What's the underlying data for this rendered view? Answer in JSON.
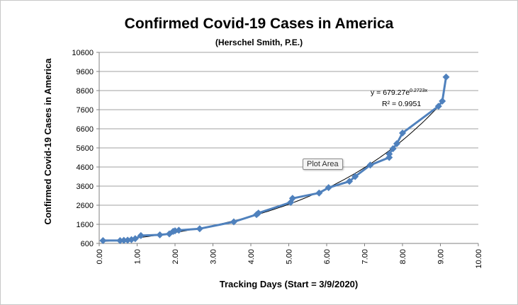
{
  "chart_data": {
    "type": "scatter",
    "title": "Confirmed Covid-19 Cases in America",
    "subtitle": "(Herschel Smith, P.E.)",
    "xlabel": "Tracking Days (Start = 3/9/2020)",
    "ylabel": "Confirmed Covid-19 Cases in America",
    "xlim": [
      0,
      10
    ],
    "ylim": [
      600,
      10600
    ],
    "x_tick_labels": [
      "0.00",
      "1.00",
      "2.00",
      "3.00",
      "4.00",
      "5.00",
      "6.00",
      "7.00",
      "8.00",
      "9.00",
      "10.00"
    ],
    "y_tick_labels": [
      "600",
      "1600",
      "2600",
      "3600",
      "4600",
      "5600",
      "6600",
      "7600",
      "8600",
      "9600",
      "10600"
    ],
    "grid": true,
    "series": [
      {
        "color": "#4f81bd",
        "x": [
          0.1,
          0.55,
          0.65,
          0.75,
          0.85,
          0.95,
          1.1,
          1.6,
          1.85,
          1.95,
          2.0,
          2.1,
          2.65,
          3.55,
          4.15,
          4.2,
          5.05,
          5.1,
          5.8,
          6.05,
          6.6,
          6.75,
          7.15,
          7.65,
          7.65,
          7.75,
          7.85,
          8.0,
          8.95,
          9.05,
          9.15
        ],
        "y": [
          750,
          750,
          760,
          770,
          800,
          850,
          1010,
          1050,
          1100,
          1230,
          1260,
          1290,
          1370,
          1730,
          2110,
          2190,
          2750,
          2960,
          3240,
          3520,
          3850,
          4100,
          4700,
          5100,
          5280,
          5560,
          5820,
          6380,
          7780,
          8050,
          9310
        ]
      }
    ],
    "trendline": {
      "type": "exponential",
      "a": 679.27,
      "b": 0.2723,
      "equation_base": "y = 679.27e",
      "equation_exponent": "0.2723x",
      "r2_label": "R² = 0.9951"
    },
    "legend": "none"
  },
  "tooltip": "Plot Area"
}
